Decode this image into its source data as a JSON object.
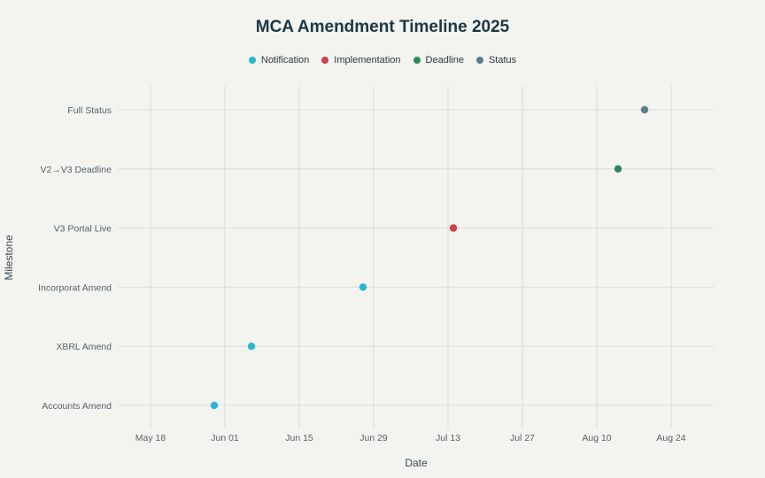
{
  "chart_data": {
    "type": "scatter",
    "title": "MCA Amendment Timeline 2025",
    "xlabel": "Date",
    "ylabel": "Milestone",
    "x_ticks": [
      "May 18",
      "Jun 01",
      "Jun 15",
      "Jun 29",
      "Jul 13",
      "Jul 27",
      "Aug 10",
      "Aug 24"
    ],
    "categories": [
      "Accounts Amend",
      "XBRL Amend",
      "Incorporat Amend",
      "V3 Portal Live",
      "V2→V3 Deadline",
      "Full Status"
    ],
    "legend": [
      {
        "name": "Notification",
        "color": "#2ab7d0"
      },
      {
        "name": "Implementation",
        "color": "#d0414a"
      },
      {
        "name": "Deadline",
        "color": "#2e8a5a"
      },
      {
        "name": "Status",
        "color": "#5b7c8c"
      }
    ],
    "points": [
      {
        "category": "Accounts Amend",
        "date": "2025-05-30",
        "series": "Notification"
      },
      {
        "category": "XBRL Amend",
        "date": "2025-06-06",
        "series": "Notification"
      },
      {
        "category": "Incorporat Amend",
        "date": "2025-06-27",
        "series": "Notification"
      },
      {
        "category": "V3 Portal Live",
        "date": "2025-07-14",
        "series": "Implementation"
      },
      {
        "category": "V2→V3 Deadline",
        "date": "2025-08-14",
        "series": "Deadline"
      },
      {
        "category": "Full Status",
        "date": "2025-08-19",
        "series": "Status"
      }
    ],
    "xlim": [
      "2025-05-12",
      "2025-09-01"
    ],
    "grid": true,
    "legend_position": "top-center"
  }
}
